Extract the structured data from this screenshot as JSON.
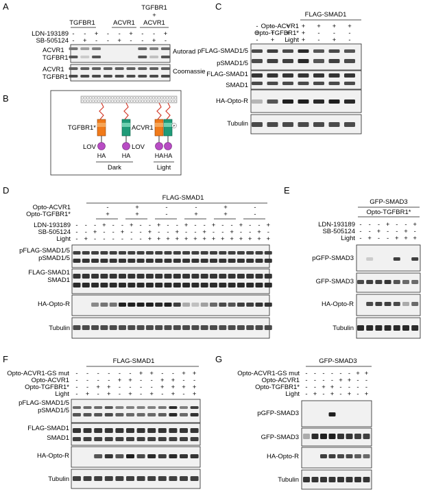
{
  "panel_letters": [
    "A",
    "B",
    "C",
    "D",
    "E",
    "F",
    "G"
  ],
  "panelA": {
    "groups": [
      "TGFBR1",
      "ACVR1",
      "TGFBR1\n+\nACVR1"
    ],
    "group_line1": "TGFBR1",
    "group_line2": "+",
    "group_line3": "ACVR1",
    "rows": [
      "LDN-193189",
      "SB-505124"
    ],
    "row_signs": [
      [
        "-",
        "-",
        "+",
        "-",
        "-",
        "+",
        "-",
        "-",
        "+"
      ],
      [
        "-",
        "+",
        "-",
        "-",
        "+",
        "-",
        "-",
        "+",
        "-"
      ]
    ],
    "blot_labels": [
      "ACVR1",
      "TGFBR1",
      "ACVR1",
      "TGFBR1"
    ],
    "right_labels": [
      "Autorad",
      "Coomassie"
    ]
  },
  "panelB": {
    "labels": {
      "tgfbr1": "TGFBR1*",
      "acvr1": "ACVR1",
      "lov1": "LOV",
      "lov2": "LOV",
      "ha1": "HA",
      "ha2": "HA",
      "ha3": "HA",
      "ha4": "HA",
      "dark": "Dark",
      "light": "Light",
      "p": "P"
    }
  },
  "panelC": {
    "header": "FLAG-SMAD1",
    "rows": [
      "Opto-ACVR1",
      "Opto-TGFBR1*",
      "Light"
    ],
    "row_signs": [
      [
        "-",
        "-",
        "+",
        "+",
        "+",
        "+",
        "+"
      ],
      [
        "+",
        "+",
        "+",
        "+",
        "-",
        "-",
        "-"
      ],
      [
        "-",
        "+",
        "-",
        "+",
        "-",
        "+",
        "-"
      ]
    ],
    "blot_labels": [
      "pFLAG-SMAD1/5",
      "pSMAD1/5",
      "FLAG-SMAD1",
      "SMAD1",
      "HA-Opto-R",
      "Tubulin"
    ]
  },
  "panelD": {
    "header": "FLAG-SMAD1",
    "rows": [
      "Opto-ACVR1",
      "Opto-TGFBR1*",
      "LDN-193189",
      "SB-505124",
      "Light"
    ],
    "opto_acvr1": [
      "-",
      "+",
      "-",
      "-",
      "+",
      "-"
    ],
    "opto_tgfbr1": [
      "+",
      "+",
      "-",
      "+",
      "+",
      "-"
    ],
    "ldn": [
      "-",
      "-",
      "-",
      "+",
      "-",
      "-",
      "+",
      "-",
      "-",
      "+",
      "-",
      "-",
      "+",
      "-",
      "-",
      "+",
      "-",
      "-",
      "+",
      "-",
      "-",
      "+"
    ],
    "sb": [
      "-",
      "-",
      "+",
      "-",
      "-",
      "+",
      "-",
      "-",
      "+",
      "-",
      "-",
      "+",
      "-",
      "-",
      "+",
      "-",
      "-",
      "+",
      "-",
      "-",
      "+",
      "-"
    ],
    "light": [
      "-",
      "+",
      "-",
      "-",
      "-",
      "-",
      "-",
      "-",
      "+",
      "+",
      "+",
      "+",
      "+",
      "+",
      "+",
      "+",
      "+",
      "+",
      "+",
      "+",
      "+",
      "+"
    ],
    "blot_labels": [
      "pFLAG-SMAD1/5",
      "pSMAD1/5",
      "FLAG-SMAD1",
      "SMAD1",
      "HA-Opto-R",
      "Tubulin"
    ]
  },
  "panelE": {
    "header": "GFP-SMAD3",
    "subheader": "Opto-TGFBR1*",
    "rows": [
      "LDN-193189",
      "SB-505124",
      "Light"
    ],
    "row_signs": [
      [
        "-",
        "-",
        "-",
        "+",
        "-",
        "-",
        "+"
      ],
      [
        "-",
        "-",
        "+",
        "-",
        "-",
        "+",
        "-"
      ],
      [
        "-",
        "+",
        "-",
        "-",
        "+",
        "+",
        "+"
      ]
    ],
    "blot_labels": [
      "pGFP-SMAD3",
      "GFP-SMAD3",
      "HA-Opto-R",
      "Tubulin"
    ]
  },
  "panelF": {
    "header": "FLAG-SMAD1",
    "rows": [
      "Opto-ACVR1-GS mut",
      "Opto-ACVR1",
      "Opto-TGFBR1*",
      "Light"
    ],
    "row_signs": [
      [
        "-",
        "-",
        "-",
        "-",
        "-",
        "-",
        "+",
        "+",
        "-",
        "-",
        "+",
        "+"
      ],
      [
        "-",
        "-",
        "-",
        "-",
        "+",
        "+",
        "-",
        "-",
        "+",
        "+",
        "-",
        "-"
      ],
      [
        "-",
        "-",
        "+",
        "+",
        "-",
        "-",
        "-",
        "-",
        "+",
        "+",
        "+",
        "+"
      ],
      [
        "-",
        "+",
        "-",
        "+",
        "-",
        "+",
        "-",
        "+",
        "-",
        "+",
        "-",
        "+"
      ]
    ],
    "blot_labels": [
      "pFLAG-SMAD1/5",
      "pSMAD1/5",
      "FLAG-SMAD1",
      "SMAD1",
      "HA-Opto-R",
      "Tubulin"
    ]
  },
  "panelG": {
    "header": "GFP-SMAD3",
    "rows": [
      "Opto-ACVR1-GS mut",
      "Opto-ACVR1",
      "Opto-TGFBR1*",
      "Light"
    ],
    "row_signs": [
      [
        "-",
        "-",
        "-",
        "-",
        "-",
        "-",
        "+",
        "+"
      ],
      [
        "-",
        "-",
        "-",
        "-",
        "+",
        "+",
        "-",
        "-"
      ],
      [
        "-",
        "-",
        "+",
        "+",
        "-",
        "-",
        "-",
        "-"
      ],
      [
        "-",
        "+",
        "-",
        "+",
        "-",
        "+",
        "-",
        "+"
      ]
    ],
    "blot_labels": [
      "pGFP-SMAD3",
      "GFP-SMAD3",
      "HA-Opto-R",
      "Tubulin"
    ]
  },
  "colors": {
    "band": "#1b1b1b",
    "blot_bg": "#f1f1f1",
    "tgfbr1_kinase": "#f07a1a",
    "acvr1_kinase": "#1f9b78",
    "lov": "#b84cc4",
    "linker": "#d33b2c"
  }
}
